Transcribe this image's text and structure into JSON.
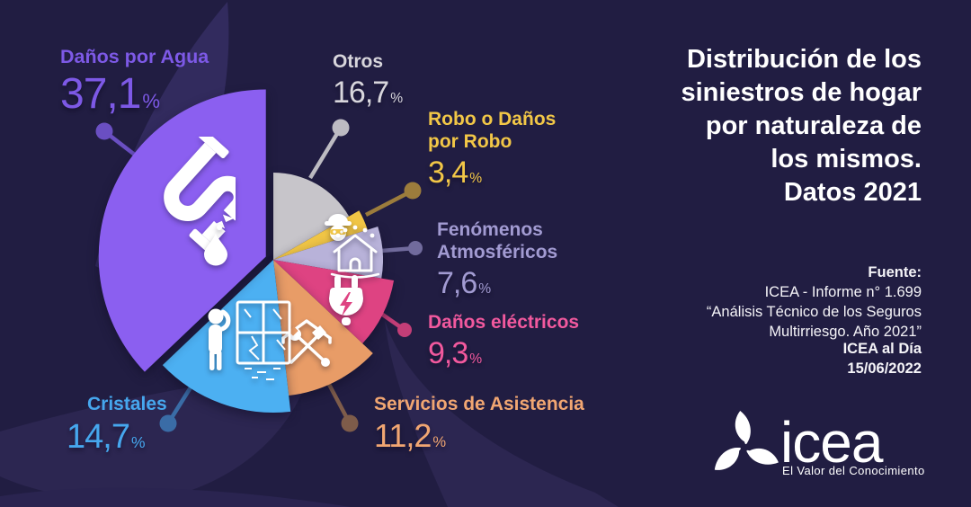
{
  "page": {
    "background_color": "#211d42",
    "petal_color": "#2c2651"
  },
  "chart_data": {
    "type": "pie",
    "title": "Distribución de los siniestros de hogar por naturaleza de los mismos. Datos 2021",
    "unit": "%",
    "start_angle_deg": 0,
    "direction": "clockwise",
    "slices": [
      {
        "label": "Otros",
        "value": 16.7,
        "display": "16,7",
        "color": "#c7c5ca",
        "label_color": "#d8d6dc",
        "line_color": "#bdbbc2",
        "icon": ""
      },
      {
        "label": "Robo o Daños por Robo",
        "value": 3.4,
        "display": "3,4",
        "color": "#f0c545",
        "label_color": "#f2c747",
        "line_color": "#9c7c3c",
        "icon": "burglar-icon"
      },
      {
        "label": "Fenómenos Atmosféricos",
        "value": 7.6,
        "display": "7,6",
        "color": "#b8b2d9",
        "label_color": "#a29bd2",
        "line_color": "#716b9d",
        "icon": "house-rain-icon"
      },
      {
        "label": "Daños eléctricos",
        "value": 9.3,
        "display": "9,3",
        "color": "#de4382",
        "label_color": "#f2599e",
        "line_color": "#c33e77",
        "icon": "plug-lightning-icon"
      },
      {
        "label": "Servicios de Asistencia",
        "value": 11.2,
        "display": "11,2",
        "color": "#e89c67",
        "label_color": "#f1a672",
        "line_color": "#7e5c4a",
        "icon": "roof-tools-icon"
      },
      {
        "label": "Cristales",
        "value": 14.7,
        "display": "14,7",
        "color": "#4cb0f2",
        "label_color": "#46a7ee",
        "line_color": "#3a6ca6",
        "icon": "broken-window-person-icon"
      },
      {
        "label": "Daños por Agua",
        "value": 37.1,
        "display": "37,1",
        "color": "#8b5ff0",
        "label_color": "#7d59e6",
        "line_color": "#6a4fc2",
        "icon": "broken-pipe-icon"
      }
    ]
  },
  "panel": {
    "title": "Distribución de los\nsiniestros de hogar\npor naturaleza de\nlos mismos.\nDatos 2021",
    "source_heading": "Fuente:",
    "source_lines": "ICEA - Informe n° 1.699\n“Análisis Técnico de los Seguros\nMultirriesgo. Año 2021”",
    "edition": "ICEA al Día\n15/06/2022",
    "logo_text": "icea",
    "logo_tagline": "El Valor del Conocimiento"
  }
}
